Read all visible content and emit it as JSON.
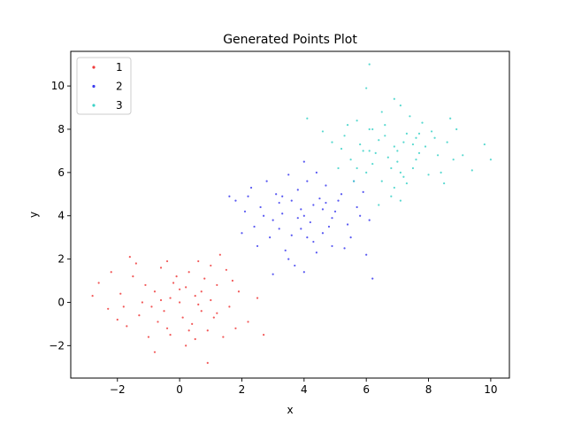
{
  "chart_data": {
    "type": "scatter",
    "title": "Generated Points Plot",
    "xlabel": "x",
    "ylabel": "y",
    "xlim": [
      -3.5,
      10.6
    ],
    "ylim": [
      -3.5,
      11.6
    ],
    "xticks": [
      -2,
      0,
      2,
      4,
      6,
      8,
      10
    ],
    "yticks": [
      -2,
      0,
      2,
      4,
      6,
      8,
      10
    ],
    "xtick_labels": [
      "−2",
      "0",
      "2",
      "4",
      "6",
      "8",
      "10"
    ],
    "ytick_labels": [
      "−2",
      "0",
      "2",
      "4",
      "6",
      "8",
      "10"
    ],
    "grid": false,
    "legend_position": "upper-left",
    "series": [
      {
        "name": "1",
        "color": "#f03c3c",
        "points": [
          [
            0.0,
            0.0
          ],
          [
            -0.8,
            0.5
          ],
          [
            0.7,
            -0.4
          ],
          [
            -1.3,
            -0.6
          ],
          [
            1.2,
            0.8
          ],
          [
            0.3,
            1.4
          ],
          [
            -0.4,
            -1.2
          ],
          [
            1.6,
            -0.2
          ],
          [
            -1.9,
            0.4
          ],
          [
            0.9,
            -1.3
          ],
          [
            -0.2,
            0.9
          ],
          [
            -1.0,
            -1.6
          ],
          [
            0.5,
            0.3
          ],
          [
            1.9,
            0.5
          ],
          [
            -2.3,
            -0.3
          ],
          [
            0.1,
            -0.7
          ],
          [
            -0.6,
            1.6
          ],
          [
            1.4,
            -1.6
          ],
          [
            -1.5,
            1.2
          ],
          [
            0.6,
            1.9
          ],
          [
            -0.9,
            -0.2
          ],
          [
            0.2,
            -2.0
          ],
          [
            2.2,
            -0.9
          ],
          [
            -2.6,
            0.9
          ],
          [
            1.0,
            0.1
          ],
          [
            -0.3,
            0.2
          ],
          [
            0.8,
            1.1
          ],
          [
            -1.2,
            0.0
          ],
          [
            1.5,
            1.5
          ],
          [
            -0.7,
            -0.9
          ],
          [
            0.4,
            -1.0
          ],
          [
            -1.7,
            -1.1
          ],
          [
            2.5,
            0.2
          ],
          [
            -0.1,
            1.2
          ],
          [
            1.1,
            -0.7
          ],
          [
            -2.0,
            -0.8
          ],
          [
            0.0,
            0.6
          ],
          [
            -0.5,
            -0.4
          ],
          [
            1.8,
            -1.2
          ],
          [
            -1.4,
            1.8
          ],
          [
            0.7,
            0.5
          ],
          [
            -2.8,
            0.3
          ],
          [
            1.3,
            2.2
          ],
          [
            -0.8,
            -2.3
          ],
          [
            0.9,
            -2.8
          ],
          [
            2.7,
            -1.5
          ],
          [
            -1.6,
            2.1
          ],
          [
            0.5,
            -1.7
          ],
          [
            -0.3,
            -1.5
          ],
          [
            1.7,
            1.0
          ],
          [
            -1.1,
            0.8
          ],
          [
            0.2,
            0.7
          ],
          [
            -0.6,
            0.1
          ],
          [
            1.2,
            -0.5
          ],
          [
            -1.8,
            -0.2
          ],
          [
            0.6,
            -0.1
          ],
          [
            -0.4,
            1.9
          ],
          [
            1.0,
            1.7
          ],
          [
            -2.2,
            1.4
          ],
          [
            0.3,
            -1.3
          ]
        ]
      },
      {
        "name": "2",
        "color": "#3c3cf0",
        "points": [
          [
            4.0,
            4.0
          ],
          [
            3.2,
            4.6
          ],
          [
            4.8,
            3.5
          ],
          [
            3.6,
            3.1
          ],
          [
            4.5,
            4.8
          ],
          [
            3.0,
            3.8
          ],
          [
            5.0,
            4.2
          ],
          [
            3.8,
            5.2
          ],
          [
            4.3,
            2.8
          ],
          [
            2.6,
            4.4
          ],
          [
            5.4,
            3.6
          ],
          [
            3.4,
            2.4
          ],
          [
            4.1,
            5.6
          ],
          [
            2.4,
            3.5
          ],
          [
            5.2,
            5.0
          ],
          [
            3.9,
            3.4
          ],
          [
            4.6,
            4.3
          ],
          [
            3.1,
            5.0
          ],
          [
            4.9,
            2.6
          ],
          [
            2.2,
            4.9
          ],
          [
            5.7,
            4.4
          ],
          [
            3.7,
            1.7
          ],
          [
            4.4,
            6.0
          ],
          [
            2.0,
            3.2
          ],
          [
            5.5,
            3.0
          ],
          [
            3.3,
            4.1
          ],
          [
            4.2,
            3.7
          ],
          [
            2.8,
            5.6
          ],
          [
            5.9,
            5.1
          ],
          [
            3.5,
            2.0
          ],
          [
            4.7,
            5.4
          ],
          [
            2.5,
            2.6
          ],
          [
            6.1,
            3.8
          ],
          [
            3.0,
            1.3
          ],
          [
            4.0,
            6.5
          ],
          [
            1.8,
            4.7
          ],
          [
            6.0,
            2.2
          ],
          [
            3.6,
            4.7
          ],
          [
            4.4,
            2.3
          ],
          [
            2.9,
            3.0
          ],
          [
            5.1,
            4.7
          ],
          [
            3.8,
            3.9
          ],
          [
            4.9,
            3.9
          ],
          [
            3.2,
            3.4
          ],
          [
            4.3,
            4.5
          ],
          [
            2.7,
            4.0
          ],
          [
            5.6,
            5.6
          ],
          [
            4.0,
            1.4
          ],
          [
            1.6,
            4.9
          ],
          [
            6.2,
            1.1
          ],
          [
            3.5,
            5.9
          ],
          [
            4.6,
            3.2
          ],
          [
            2.3,
            5.3
          ],
          [
            5.3,
            2.5
          ],
          [
            3.9,
            4.3
          ],
          [
            4.1,
            3.0
          ],
          [
            3.3,
            4.9
          ],
          [
            4.7,
            4.6
          ],
          [
            2.1,
            4.2
          ],
          [
            5.8,
            4.0
          ]
        ]
      },
      {
        "name": "3",
        "color": "#3cd2c8",
        "points": [
          [
            7.0,
            7.0
          ],
          [
            6.4,
            7.5
          ],
          [
            7.6,
            6.6
          ],
          [
            6.8,
            6.2
          ],
          [
            7.3,
            7.8
          ],
          [
            6.1,
            7.0
          ],
          [
            7.9,
            7.2
          ],
          [
            6.6,
            8.2
          ],
          [
            7.2,
            5.8
          ],
          [
            5.8,
            7.3
          ],
          [
            8.3,
            6.8
          ],
          [
            6.9,
            5.3
          ],
          [
            7.4,
            8.6
          ],
          [
            5.5,
            6.6
          ],
          [
            8.1,
            7.9
          ],
          [
            6.7,
            6.7
          ],
          [
            7.5,
            7.3
          ],
          [
            6.2,
            8.0
          ],
          [
            8.0,
            5.9
          ],
          [
            5.3,
            7.7
          ],
          [
            8.6,
            7.4
          ],
          [
            6.8,
            4.9
          ],
          [
            7.1,
            9.1
          ],
          [
            5.1,
            6.2
          ],
          [
            8.4,
            6.0
          ],
          [
            6.3,
            6.9
          ],
          [
            7.7,
            6.9
          ],
          [
            5.7,
            8.4
          ],
          [
            8.9,
            8.0
          ],
          [
            6.5,
            5.6
          ],
          [
            7.8,
            8.3
          ],
          [
            5.6,
            5.6
          ],
          [
            9.1,
            6.8
          ],
          [
            6.4,
            4.5
          ],
          [
            6.9,
            9.4
          ],
          [
            4.9,
            7.4
          ],
          [
            9.4,
            6.1
          ],
          [
            6.6,
            7.7
          ],
          [
            7.3,
            5.5
          ],
          [
            6.0,
            6.0
          ],
          [
            8.2,
            7.6
          ],
          [
            7.0,
            6.5
          ],
          [
            7.6,
            7.6
          ],
          [
            6.2,
            6.4
          ],
          [
            7.2,
            7.4
          ],
          [
            5.9,
            7.0
          ],
          [
            8.7,
            8.5
          ],
          [
            7.1,
            4.7
          ],
          [
            4.6,
            7.9
          ],
          [
            9.8,
            7.3
          ],
          [
            6.5,
            8.8
          ],
          [
            7.5,
            6.2
          ],
          [
            5.4,
            8.2
          ],
          [
            8.5,
            5.5
          ],
          [
            6.9,
            7.2
          ],
          [
            7.1,
            6.0
          ],
          [
            6.1,
            8.0
          ],
          [
            7.7,
            7.8
          ],
          [
            5.2,
            7.1
          ],
          [
            10.0,
            6.6
          ],
          [
            6.1,
            11.0
          ],
          [
            4.1,
            8.5
          ],
          [
            5.7,
            6.2
          ],
          [
            8.8,
            6.6
          ],
          [
            6.0,
            9.9
          ]
        ]
      }
    ]
  }
}
